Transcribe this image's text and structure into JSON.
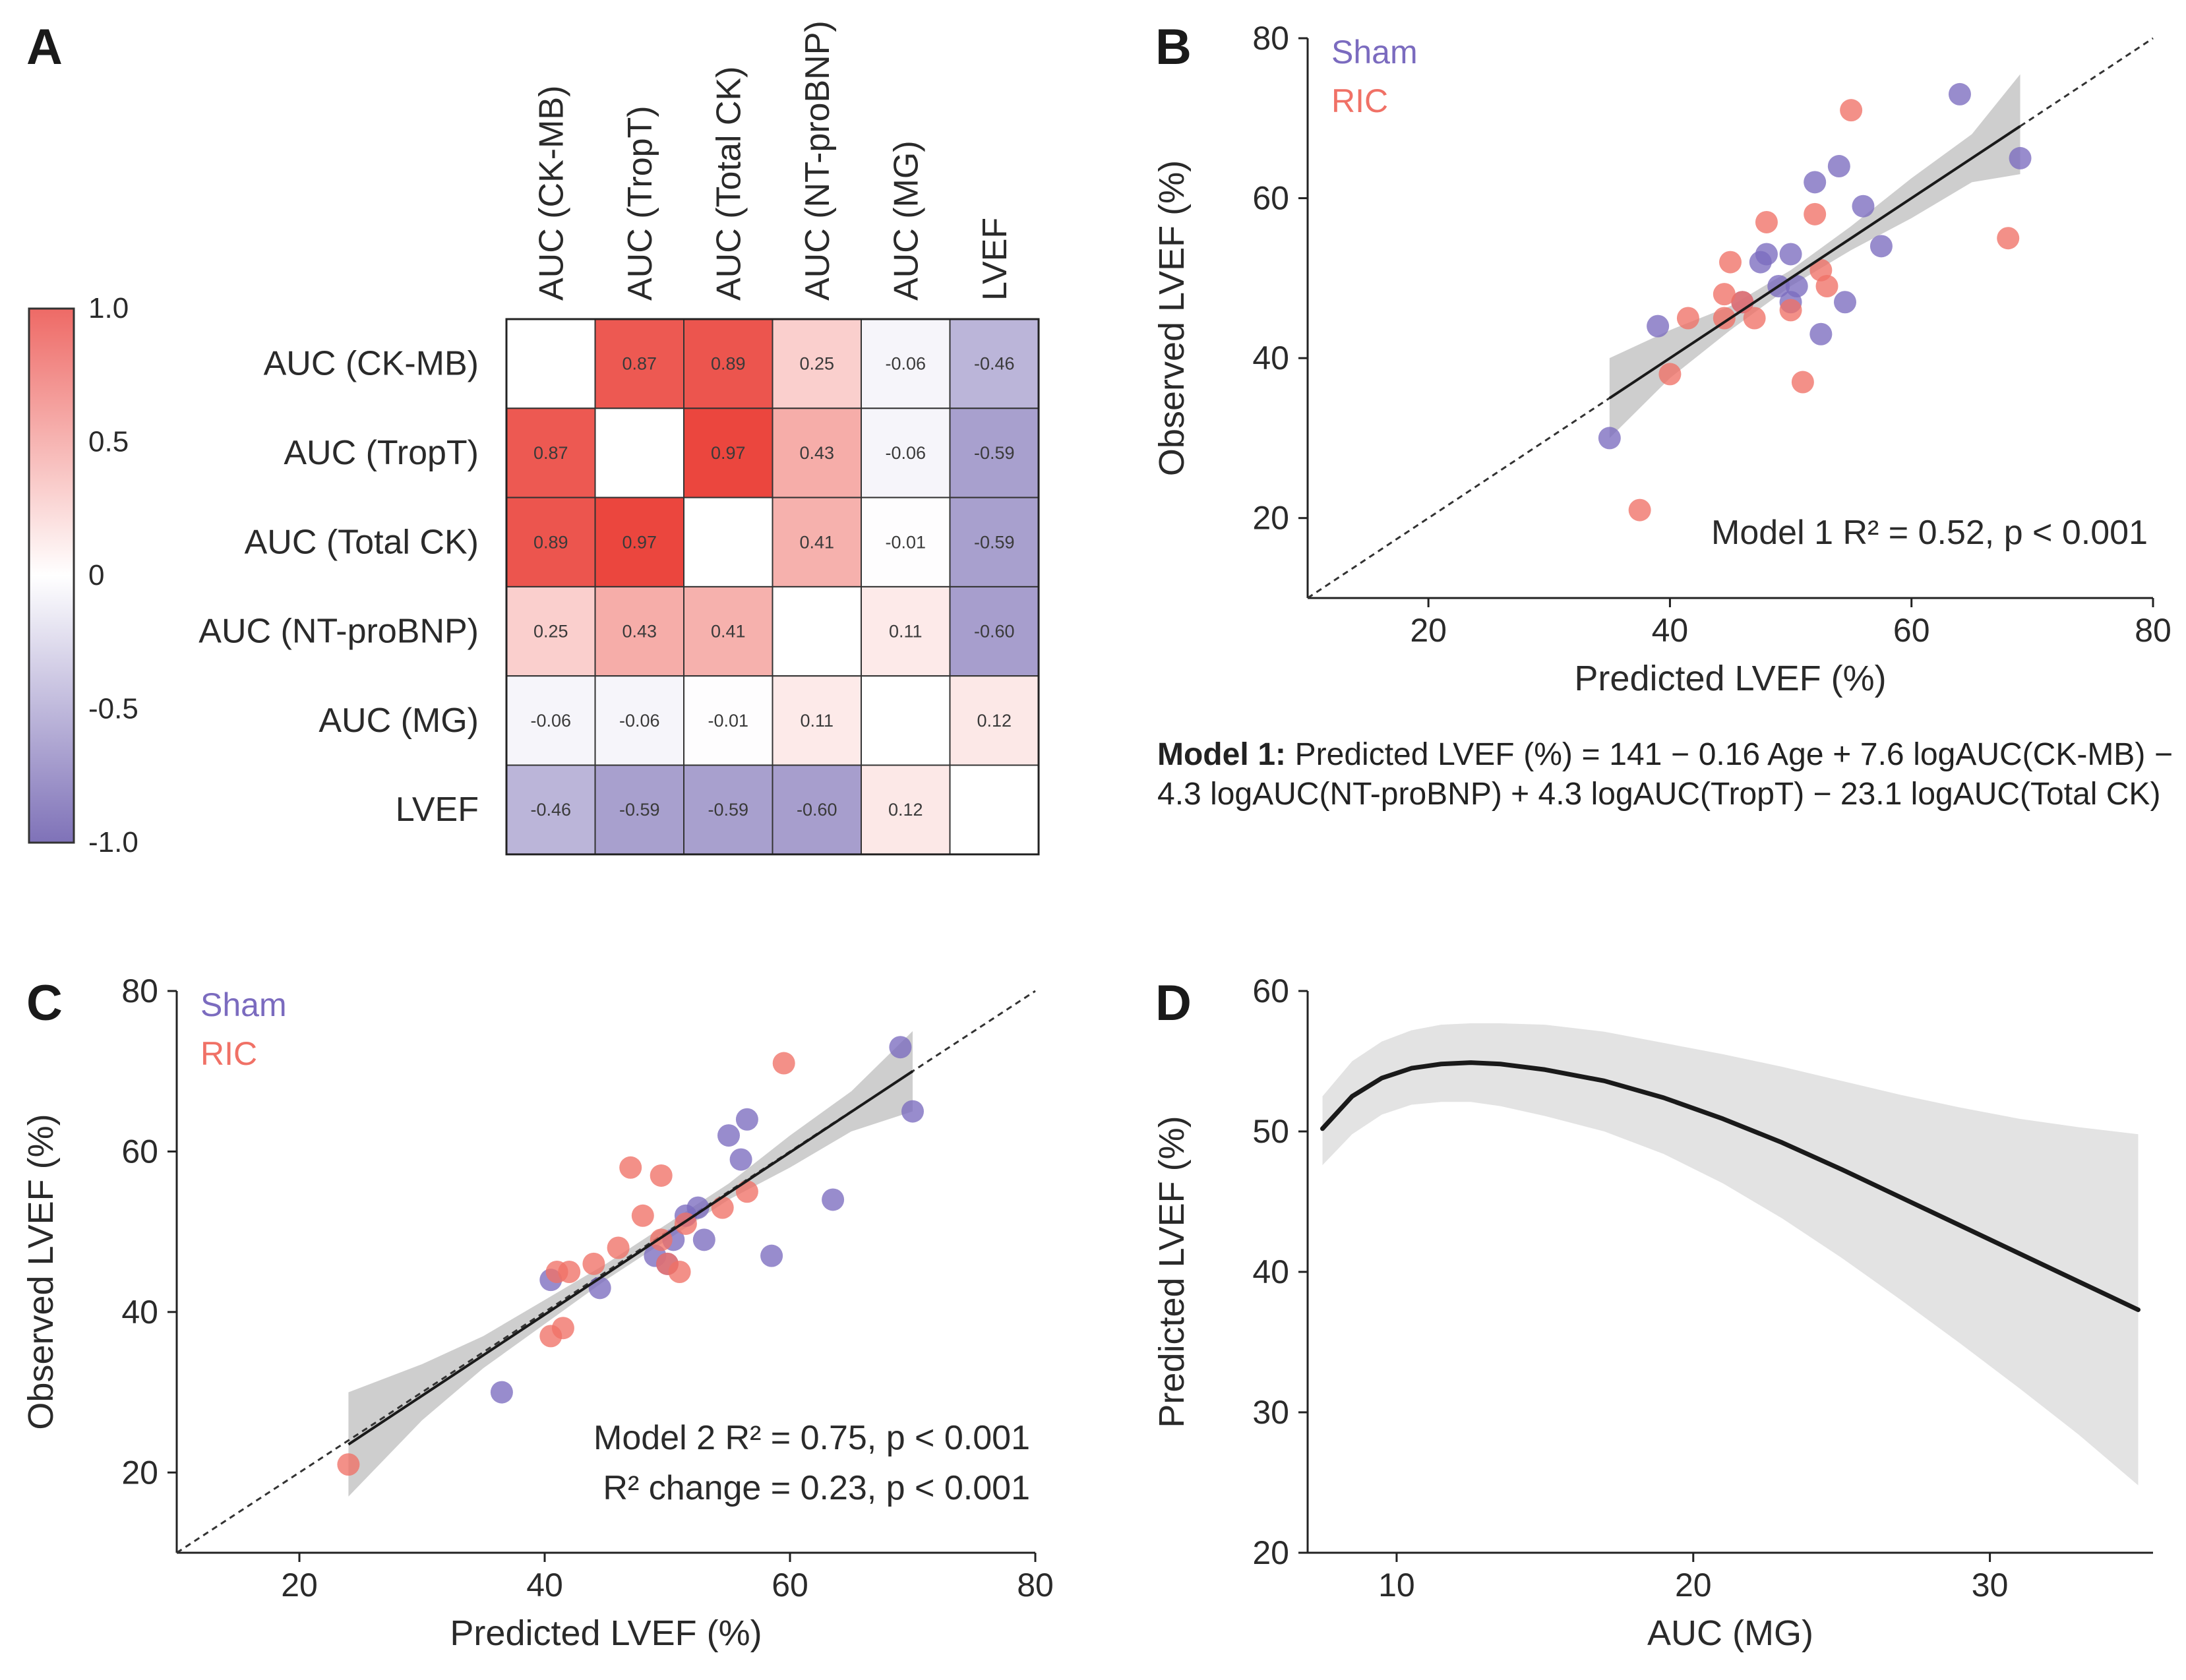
{
  "panel_labels": {
    "a": "A",
    "b": "B",
    "c": "C",
    "d": "D"
  },
  "colors": {
    "sham": "#7b6bbf",
    "ric": "#f07166",
    "ci_band": "#bdbdbd",
    "line": "#1a1a1a"
  },
  "model1_text": {
    "bold": "Model 1:",
    "rest": " Predicted LVEF (%) = 141 − 0.16 Age + 7.6 logAUC(CK-MB) − 4.3 logAUC(NT-proBNP) + 4.3 logAUC(TropT) − 23.1 logAUC(Total CK)"
  },
  "chart_data": [
    {
      "panel": "A",
      "type": "heatmap",
      "title": "",
      "labels": [
        "AUC (CK-MB)",
        "AUC (TropT)",
        "AUC (Total CK)",
        "AUC (NT-proBNP)",
        "AUC (MG)",
        "LVEF"
      ],
      "matrix": [
        [
          null,
          0.87,
          0.89,
          0.25,
          -0.06,
          -0.46
        ],
        [
          0.87,
          null,
          0.97,
          0.43,
          -0.06,
          -0.59
        ],
        [
          0.89,
          0.97,
          null,
          0.41,
          -0.01,
          -0.59
        ],
        [
          0.25,
          0.43,
          0.41,
          null,
          0.11,
          -0.6
        ],
        [
          -0.06,
          -0.06,
          -0.01,
          0.11,
          null,
          0.12
        ],
        [
          -0.46,
          -0.59,
          -0.59,
          -0.6,
          0.12,
          null
        ]
      ],
      "cell_text": [
        [
          "",
          "0.87",
          "0.89",
          "0.25",
          "-0.06",
          "-0.46"
        ],
        [
          "0.87",
          "",
          "0.97",
          "0.43",
          "-0.06",
          "-0.59"
        ],
        [
          "0.89",
          "0.97",
          "",
          "0.41",
          "-0.01",
          "-0.59"
        ],
        [
          "0.25",
          "0.43",
          "0.41",
          "",
          "0.11",
          "-0.60"
        ],
        [
          "-0.06",
          "-0.06",
          "-0.01",
          "0.11",
          "",
          "0.12"
        ],
        [
          "-0.46",
          "-0.59",
          "-0.59",
          "-0.60",
          "0.12",
          ""
        ]
      ],
      "colorbar": {
        "range": [
          -1.0,
          1.0
        ],
        "ticks": [
          1.0,
          0.5,
          0,
          -0.5,
          -1.0
        ],
        "tick_labels": [
          "1.0",
          "0.5",
          "0",
          "-0.5",
          "-1.0"
        ]
      }
    },
    {
      "panel": "B",
      "type": "scatter",
      "xlabel": "Predicted LVEF (%)",
      "ylabel": "Observed LVEF (%)",
      "xlim": [
        10,
        80
      ],
      "ylim": [
        10,
        80
      ],
      "xticks": [
        20,
        40,
        60,
        80
      ],
      "yticks": [
        20,
        40,
        60,
        80
      ],
      "legend": [
        "Sham",
        "RIC"
      ],
      "annotations": [
        "Model 1 R² = 0.52, p < 0.001"
      ],
      "series": [
        {
          "name": "Sham",
          "points": [
            [
              35,
              30
            ],
            [
              39,
              44
            ],
            [
              46,
              47
            ],
            [
              47.5,
              52
            ],
            [
              48,
              53
            ],
            [
              49,
              49
            ],
            [
              50,
              47
            ],
            [
              50,
              53
            ],
            [
              50.5,
              49
            ],
            [
              52,
              62
            ],
            [
              52.5,
              43
            ],
            [
              54,
              64
            ],
            [
              54.5,
              47
            ],
            [
              56,
              59
            ],
            [
              57.5,
              54
            ],
            [
              64,
              73
            ],
            [
              69,
              65
            ]
          ]
        },
        {
          "name": "RIC",
          "points": [
            [
              37.5,
              21
            ],
            [
              40,
              38
            ],
            [
              41.5,
              45
            ],
            [
              44.5,
              48
            ],
            [
              44.5,
              45
            ],
            [
              45,
              52
            ],
            [
              46,
              47
            ],
            [
              47,
              45
            ],
            [
              48,
              57
            ],
            [
              50,
              46
            ],
            [
              51,
              37
            ],
            [
              52,
              58
            ],
            [
              52.5,
              51
            ],
            [
              53,
              49
            ],
            [
              55,
              71
            ],
            [
              68,
              55
            ]
          ]
        }
      ],
      "fit": {
        "x": [
          35,
          69
        ],
        "y": [
          35,
          69
        ]
      },
      "ci_band": [
        [
          35,
          40,
          30
        ],
        [
          40,
          43.5,
          37.5
        ],
        [
          45,
          46.5,
          43.5
        ],
        [
          50,
          51,
          49
        ],
        [
          55,
          56.5,
          53.5
        ],
        [
          60,
          62.5,
          57.5
        ],
        [
          65,
          68,
          62
        ],
        [
          69,
          75.5,
          63
        ]
      ],
      "identity_line": [
        10,
        80
      ]
    },
    {
      "panel": "C",
      "type": "scatter",
      "xlabel": "Predicted LVEF (%)",
      "ylabel": "Observed LVEF (%)",
      "xlim": [
        10,
        80
      ],
      "ylim": [
        10,
        80
      ],
      "xticks": [
        20,
        40,
        60,
        80
      ],
      "yticks": [
        20,
        40,
        60,
        80
      ],
      "legend": [
        "Sham",
        "RIC"
      ],
      "annotations": [
        "Model 2 R² = 0.75, p < 0.001",
        "R² change = 0.23, p < 0.001"
      ],
      "series": [
        {
          "name": "Sham",
          "points": [
            [
              36.5,
              30
            ],
            [
              40.5,
              44
            ],
            [
              44.5,
              43
            ],
            [
              49,
              47
            ],
            [
              50,
              46
            ],
            [
              50.5,
              49
            ],
            [
              51.5,
              52
            ],
            [
              52.5,
              53
            ],
            [
              53,
              49
            ],
            [
              55,
              62
            ],
            [
              56,
              59
            ],
            [
              56.5,
              64
            ],
            [
              58.5,
              47
            ],
            [
              63.5,
              54
            ],
            [
              69,
              73
            ],
            [
              70,
              65
            ]
          ]
        },
        {
          "name": "RIC",
          "points": [
            [
              24,
              21
            ],
            [
              40.5,
              37
            ],
            [
              41,
              45
            ],
            [
              41.5,
              38
            ],
            [
              42,
              45
            ],
            [
              44,
              46
            ],
            [
              46,
              48
            ],
            [
              47,
              58
            ],
            [
              48,
              52
            ],
            [
              49.5,
              49
            ],
            [
              49.5,
              57
            ],
            [
              50,
              46
            ],
            [
              51,
              45
            ],
            [
              51.5,
              51
            ],
            [
              54.5,
              53
            ],
            [
              56.5,
              55
            ],
            [
              59.5,
              71
            ]
          ]
        }
      ],
      "fit": {
        "x": [
          24,
          70
        ],
        "y": [
          23.5,
          70
        ]
      },
      "ci_band": [
        [
          24,
          30,
          17
        ],
        [
          30,
          33.5,
          26.5
        ],
        [
          35,
          37,
          33
        ],
        [
          40,
          41.5,
          38.5
        ],
        [
          45,
          46,
          44
        ],
        [
          50,
          51,
          49
        ],
        [
          55,
          56,
          54
        ],
        [
          60,
          62,
          58
        ],
        [
          65,
          67.5,
          62.5
        ],
        [
          70,
          75,
          65
        ]
      ],
      "identity_line": [
        10,
        80
      ]
    },
    {
      "panel": "D",
      "type": "line",
      "xlabel": "AUC (MG)",
      "ylabel": "Predicted LVEF (%)",
      "xlim": [
        7,
        35.5
      ],
      "ylim": [
        20,
        60
      ],
      "xticks": [
        10,
        20,
        30
      ],
      "yticks": [
        20,
        30,
        40,
        50,
        60
      ],
      "x": [
        7.5,
        8.5,
        9.5,
        10.5,
        11.5,
        12.5,
        13.5,
        15,
        17,
        19,
        21,
        23,
        25,
        27,
        29,
        31,
        33,
        35
      ],
      "y": [
        50.2,
        52.5,
        53.8,
        54.5,
        54.8,
        54.9,
        54.8,
        54.4,
        53.6,
        52.4,
        50.9,
        49.2,
        47.3,
        45.3,
        43.3,
        41.3,
        39.3,
        37.3
      ],
      "ci_upper": [
        52.5,
        55.0,
        56.4,
        57.2,
        57.6,
        57.7,
        57.7,
        57.6,
        57.1,
        56.3,
        55.5,
        54.6,
        53.6,
        52.6,
        51.7,
        50.9,
        50.3,
        49.8
      ],
      "ci_lower": [
        47.6,
        49.8,
        51.2,
        51.9,
        52.1,
        52.1,
        51.8,
        51.1,
        50.0,
        48.4,
        46.3,
        43.8,
        41.0,
        38.0,
        34.9,
        31.7,
        28.4,
        24.8
      ]
    }
  ]
}
